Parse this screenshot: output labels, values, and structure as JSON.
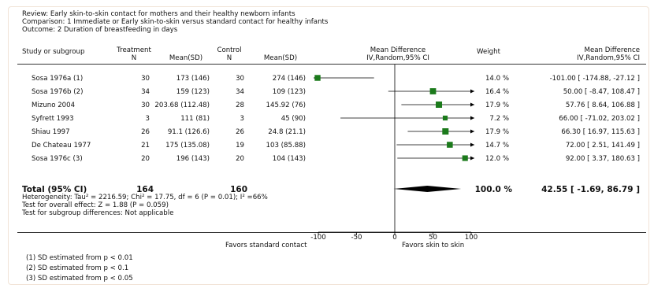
{
  "header": {
    "review": "Review:  Early skin-to-skin contact for mothers and their healthy newborn infants",
    "comparison": "Comparison:  1 Immediate or Early skin-to-skin versus standard contact for healthy infants",
    "outcome": "Outcome:  2 Duration of breastfeeding in days"
  },
  "columns": {
    "study": "Study or subgroup",
    "treatment": "Treatment",
    "treatment_n": "N",
    "treatment_mean": "Mean(SD)",
    "control": "Control",
    "control_n": "N",
    "control_mean": "Mean(SD)",
    "md_title": "Mean Difference",
    "md_method": "IV,Random,95% CI",
    "weight": "Weight",
    "md2_title": "Mean Difference",
    "md2_method": "IV,Random,95% CI"
  },
  "rows": [
    {
      "study": "Sosa 1976a (1)",
      "t_n": "30",
      "t_mean": "173 (146)",
      "c_n": "30",
      "c_mean": "274 (146)",
      "weight": "14.0 %",
      "ci": "-101.00 [ -174.88, -27.12 ]"
    },
    {
      "study": "Sosa 1976b (2)",
      "t_n": "34",
      "t_mean": "159 (123)",
      "c_n": "34",
      "c_mean": "109 (123)",
      "weight": "16.4 %",
      "ci": "50.00 [ -8.47, 108.47 ]"
    },
    {
      "study": "Mizuno 2004",
      "t_n": "30",
      "t_mean": "203.68 (112.48)",
      "c_n": "28",
      "c_mean": "145.92 (76)",
      "weight": "17.9 %",
      "ci": "57.76 [ 8.64, 106.88 ]"
    },
    {
      "study": "Syfrett 1993",
      "t_n": "3",
      "t_mean": "111 (81)",
      "c_n": "3",
      "c_mean": "45 (90)",
      "weight": "7.2 %",
      "ci": "66.00 [ -71.02, 203.02 ]"
    },
    {
      "study": "Shiau 1997",
      "t_n": "26",
      "t_mean": "91.1 (126.6)",
      "c_n": "26",
      "c_mean": "24.8 (21.1)",
      "weight": "17.9 %",
      "ci": "66.30 [ 16.97, 115.63 ]"
    },
    {
      "study": "De Chateau 1977",
      "t_n": "21",
      "t_mean": "175 (135.08)",
      "c_n": "19",
      "c_mean": "103 (85.88)",
      "weight": "14.7 %",
      "ci": "72.00 [ 2.51, 141.49 ]"
    },
    {
      "study": "Sosa 1976c (3)",
      "t_n": "20",
      "t_mean": "196 (143)",
      "c_n": "20",
      "c_mean": "104 (143)",
      "weight": "12.0 %",
      "ci": "92.00 [ 3.37, 180.63 ]"
    }
  ],
  "total": {
    "label": "Total (95% CI)",
    "t_n": "164",
    "c_n": "160",
    "weight": "100.0 %",
    "ci": "42.55 [ -1.69, 86.79 ]"
  },
  "stats": {
    "heterogeneity": "Heterogeneity: Tau² = 2216.59; Chi² = 17.75, df = 6 (P = 0.01); I² =66%",
    "overall": "Test for overall effect: Z = 1.88 (P = 0.059)",
    "subgroup": "Test for subgroup differences: Not applicable"
  },
  "axis": {
    "favors_left": "Favors standard contact",
    "favors_right": "Favors skin to skin"
  },
  "footnotes": [
    "(1) SD estimated from p < 0.01",
    "(2) SD estimated from p < 0.1",
    "(3) SD estimated from p < 0.05"
  ],
  "colors": {
    "marker": "#1b7a1b",
    "diamond": "#000000",
    "line": "#000000"
  },
  "chart_data": {
    "type": "forest",
    "xlim": [
      -100,
      100
    ],
    "ticks": [
      -100,
      -50,
      0,
      50,
      100
    ],
    "studies": [
      {
        "name": "Sosa 1976a (1)",
        "estimate": -101.0,
        "lower": -174.88,
        "upper": -27.12,
        "weight": 14.0
      },
      {
        "name": "Sosa 1976b (2)",
        "estimate": 50.0,
        "lower": -8.47,
        "upper": 108.47,
        "weight": 16.4
      },
      {
        "name": "Mizuno 2004",
        "estimate": 57.76,
        "lower": 8.64,
        "upper": 106.88,
        "weight": 17.9
      },
      {
        "name": "Syfrett 1993",
        "estimate": 66.0,
        "lower": -71.02,
        "upper": 203.02,
        "weight": 7.2
      },
      {
        "name": "Shiau 1997",
        "estimate": 66.3,
        "lower": 16.97,
        "upper": 115.63,
        "weight": 17.9
      },
      {
        "name": "De Chateau 1977",
        "estimate": 72.0,
        "lower": 2.51,
        "upper": 141.49,
        "weight": 14.7
      },
      {
        "name": "Sosa 1976c (3)",
        "estimate": 92.0,
        "lower": 3.37,
        "upper": 180.63,
        "weight": 12.0
      }
    ],
    "pooled": {
      "estimate": 42.55,
      "lower": -1.69,
      "upper": 86.79,
      "weight": 100.0
    }
  }
}
